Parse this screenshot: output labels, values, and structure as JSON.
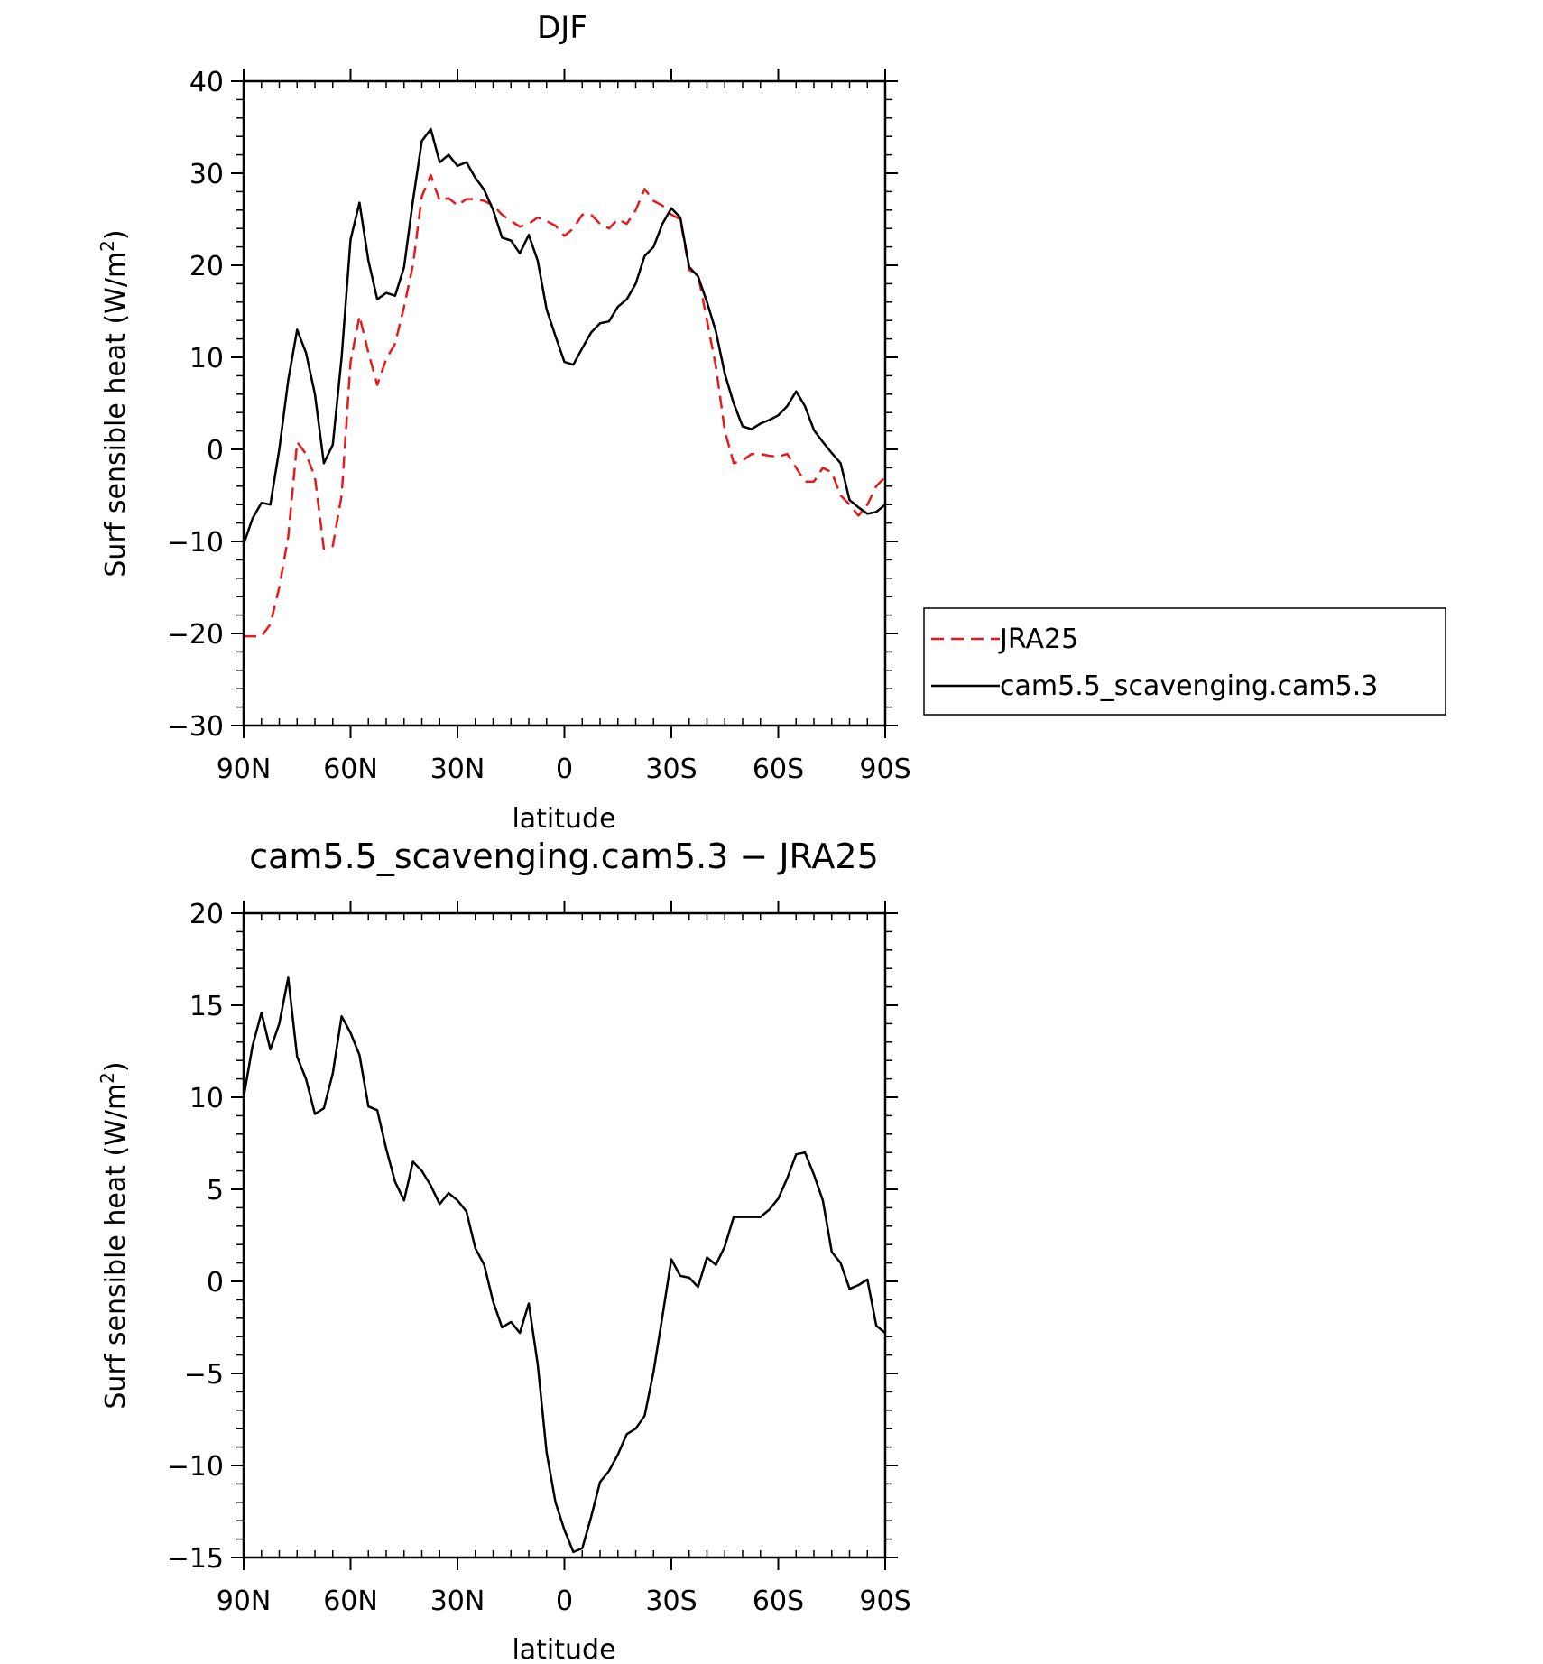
{
  "chart_data": [
    {
      "type": "line",
      "title": "DJF",
      "xlabel": "latitude",
      "ylabel": "Surf sensible heat (W/m",
      "ylabel_sup": "2",
      "ylabel_end": ")",
      "xlim": [
        90,
        -90
      ],
      "ylim": [
        -30,
        40
      ],
      "xticks": [
        90,
        60,
        30,
        0,
        -30,
        -60,
        -90
      ],
      "xtick_labels": [
        "90N",
        "60N",
        "30N",
        "0",
        "30S",
        "60S",
        "90S"
      ],
      "yticks": [
        -30,
        -20,
        -10,
        0,
        10,
        20,
        30,
        40
      ],
      "ytick_labels": [
        "−30",
        "−20",
        "−10",
        "0",
        "10",
        "20",
        "30",
        "40"
      ],
      "grid": false,
      "legend_position": "right",
      "series": [
        {
          "name": "JRA25",
          "color": "#e41a1c",
          "dash": "dashed",
          "x": [
            90,
            87.5,
            85,
            82.5,
            80,
            77.5,
            75,
            72.5,
            70,
            67.5,
            65,
            62.5,
            60,
            57.5,
            55,
            52.5,
            50,
            47.5,
            45,
            42.5,
            40,
            37.5,
            35,
            32.5,
            30,
            27.5,
            25,
            22.5,
            20,
            17.5,
            15,
            12.5,
            10,
            7.5,
            5,
            2.5,
            0,
            -2.5,
            -5,
            -7.5,
            -10,
            -12.5,
            -15,
            -17.5,
            -20,
            -22.5,
            -25,
            -27.5,
            -30,
            -32.5,
            -35,
            -37.5,
            -40,
            -42.5,
            -45,
            -47.5,
            -50,
            -52.5,
            -55,
            -57.5,
            -60,
            -62.5,
            -65,
            -67.5,
            -70,
            -72.5,
            -75,
            -77.5,
            -80,
            -82.5,
            -85,
            -87.5,
            -90
          ],
          "values": [
            -20.3,
            -20.3,
            -20.3,
            -19,
            -15,
            -9.5,
            0.8,
            -0.5,
            -3,
            -10.8,
            -10.5,
            -5,
            9.5,
            14.5,
            10.5,
            7,
            9.8,
            11.5,
            15.5,
            20,
            27.5,
            29.8,
            27,
            27.3,
            26.5,
            27.2,
            27.2,
            27,
            26.5,
            25.5,
            24.8,
            24.2,
            24.5,
            25.2,
            24.8,
            24.3,
            23.2,
            24,
            25.5,
            25.5,
            24.5,
            24,
            25,
            24.5,
            26,
            28.3,
            27,
            26.5,
            25.5,
            25,
            19.5,
            19,
            14,
            9,
            2,
            -1.5,
            -1.2,
            -0.5,
            -0.5,
            -0.7,
            -0.8,
            -0.5,
            -2,
            -3.5,
            -3.5,
            -2,
            -2.5,
            -5,
            -6,
            -7.2,
            -6,
            -4,
            -3
          ]
        },
        {
          "name": "cam5.5_scavenging.cam5.3",
          "color": "#000000",
          "dash": "solid",
          "x": [
            90,
            87.5,
            85,
            82.5,
            80,
            77.5,
            75,
            72.5,
            70,
            67.5,
            65,
            62.5,
            60,
            57.5,
            55,
            52.5,
            50,
            47.5,
            45,
            42.5,
            40,
            37.5,
            35,
            32.5,
            30,
            27.5,
            25,
            22.5,
            20,
            17.5,
            15,
            12.5,
            10,
            7.5,
            5,
            2.5,
            0,
            -2.5,
            -5,
            -7.5,
            -10,
            -12.5,
            -15,
            -17.5,
            -20,
            -22.5,
            -25,
            -27.5,
            -30,
            -32.5,
            -35,
            -37.5,
            -40,
            -42.5,
            -45,
            -47.5,
            -50,
            -52.5,
            -55,
            -57.5,
            -60,
            -62.5,
            -65,
            -67.5,
            -70,
            -72.5,
            -75,
            -77.5,
            -80,
            -82.5,
            -85,
            -87.5,
            -90
          ],
          "values": [
            -10.3,
            -7.5,
            -5.8,
            -6,
            0,
            7.5,
            13,
            10.5,
            6,
            -1.5,
            0.5,
            10,
            22.8,
            26.8,
            20.5,
            16.3,
            17,
            16.7,
            19.8,
            27,
            33.5,
            34.8,
            31.2,
            32,
            30.8,
            31.2,
            29.5,
            28.2,
            26,
            23,
            22.7,
            21.3,
            23.3,
            20.5,
            15.2,
            12.3,
            9.5,
            9.2,
            11,
            12.7,
            13.7,
            13.9,
            15.5,
            16.3,
            18,
            21,
            22,
            24.5,
            26.2,
            25.2,
            19.8,
            18.8,
            16,
            12.8,
            8.2,
            5,
            2.5,
            2.2,
            2.8,
            3.2,
            3.7,
            4.7,
            6.3,
            4.7,
            2.1,
            0.8,
            -0.4,
            -1.5,
            -5.5,
            -6.3,
            -7,
            -6.8,
            -6
          ]
        }
      ]
    },
    {
      "type": "line",
      "title": "cam5.5_scavenging.cam5.3 − JRA25",
      "xlabel": "latitude",
      "ylabel": "Surf sensible heat (W/m",
      "ylabel_sup": "2",
      "ylabel_end": ")",
      "xlim": [
        90,
        -90
      ],
      "ylim": [
        -15,
        20
      ],
      "xticks": [
        90,
        60,
        30,
        0,
        -30,
        -60,
        -90
      ],
      "xtick_labels": [
        "90N",
        "60N",
        "30N",
        "0",
        "30S",
        "60S",
        "90S"
      ],
      "yticks": [
        -15,
        -10,
        -5,
        0,
        5,
        10,
        15,
        20
      ],
      "ytick_labels": [
        "−15",
        "−10",
        "−5",
        "0",
        "5",
        "10",
        "15",
        "20"
      ],
      "grid": false,
      "series": [
        {
          "color": "#000000",
          "dash": "solid",
          "x": [
            90,
            87.5,
            85,
            82.5,
            80,
            77.5,
            75,
            72.5,
            70,
            67.5,
            65,
            62.5,
            60,
            57.5,
            55,
            52.5,
            50,
            47.5,
            45,
            42.5,
            40,
            37.5,
            35,
            32.5,
            30,
            27.5,
            25,
            22.5,
            20,
            17.5,
            15,
            12.5,
            10,
            7.5,
            5,
            2.5,
            0,
            -2.5,
            -5,
            -7.5,
            -10,
            -12.5,
            -15,
            -17.5,
            -20,
            -22.5,
            -25,
            -27.5,
            -30,
            -32.5,
            -35,
            -37.5,
            -40,
            -42.5,
            -45,
            -47.5,
            -50,
            -52.5,
            -55,
            -57.5,
            -60,
            -62.5,
            -65,
            -67.5,
            -70,
            -72.5,
            -75,
            -77.5,
            -80,
            -82.5,
            -85,
            -87.5,
            -90
          ],
          "values": [
            10,
            12.8,
            14.6,
            12.6,
            14,
            16.5,
            12.2,
            11,
            9.1,
            9.4,
            11.3,
            14.4,
            13.5,
            12.3,
            9.5,
            9.3,
            7.2,
            5.4,
            4.4,
            6.5,
            6,
            5.2,
            4.2,
            4.8,
            4.4,
            3.8,
            1.8,
            0.9,
            -1.1,
            -2.5,
            -2.2,
            -2.8,
            -1.2,
            -4.5,
            -9.3,
            -12,
            -13.5,
            -14.7,
            -14.5,
            -12.8,
            -10.9,
            -10.3,
            -9.4,
            -8.3,
            -8,
            -7.3,
            -4.9,
            -1.9,
            1.2,
            0.3,
            0.2,
            -0.3,
            1.3,
            0.9,
            1.9,
            3.5,
            3.5,
            3.5,
            3.5,
            3.9,
            4.5,
            5.6,
            6.9,
            7,
            5.8,
            4.4,
            1.6,
            1,
            -0.4,
            -0.2,
            0.1,
            -2.4,
            -2.8
          ]
        }
      ]
    }
  ]
}
